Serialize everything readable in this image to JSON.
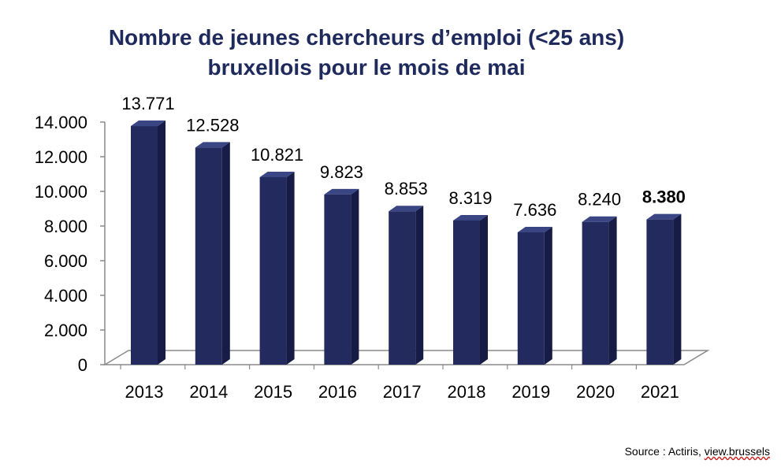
{
  "chart_data": {
    "type": "bar",
    "title_line1": "Nombre de jeunes chercheurs d’emploi (<25 ans)",
    "title_line2": "bruxellois pour le mois de mai",
    "categories": [
      "2013",
      "2014",
      "2015",
      "2016",
      "2017",
      "2018",
      "2019",
      "2020",
      "2021"
    ],
    "values": [
      13771,
      12528,
      10821,
      9823,
      8853,
      8319,
      7636,
      8240,
      8380
    ],
    "data_labels": [
      "13.771",
      "12.528",
      "10.821",
      "9.823",
      "8.853",
      "8.319",
      "7.636",
      "8.240",
      "8.380"
    ],
    "highlight_index": 8,
    "y_ticks": [
      0,
      2000,
      4000,
      6000,
      8000,
      10000,
      12000,
      14000
    ],
    "y_tick_labels": [
      "0",
      "2.000",
      "4.000",
      "6.000",
      "8.000",
      "10.000",
      "12.000",
      "14.000"
    ],
    "ylim": [
      0,
      14000
    ],
    "xlabel": "",
    "ylabel": "",
    "grid": false,
    "style": "3d-bars"
  },
  "colors": {
    "title": "#1f2a5c",
    "bar_front": "#232b5e",
    "bar_top": "#3a4584",
    "bar_side": "#161c45",
    "floor": "#ffffff",
    "axis": "#8a8a8a"
  },
  "source": {
    "prefix": "Source : Actiris, ",
    "site": "view.brussels"
  }
}
